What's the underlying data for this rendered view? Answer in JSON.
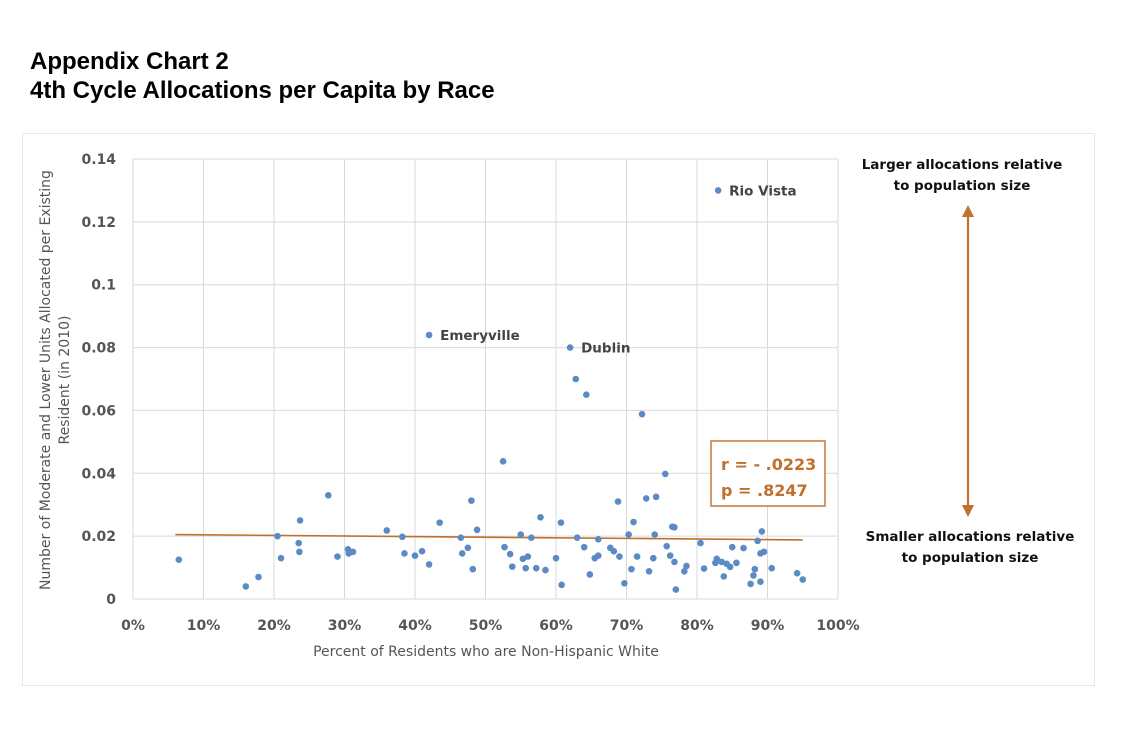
{
  "header": {
    "title_line1": "Appendix Chart 2",
    "title_line2": "4th Cycle Allocations per Capita by Race"
  },
  "annotations": {
    "top_note_line1": "Larger allocations relative",
    "top_note_line2": "to population size",
    "bottom_note_line1": "Smaller allocations relative",
    "bottom_note_line2": "to population size",
    "stats_r": "r = - .0223",
    "stats_p": "p = .8247"
  },
  "colors": {
    "points": "#5b8ac4",
    "trendline": "#c0702c",
    "arrow": "#c0702c",
    "stats_border": "#c0702c",
    "stats_text": "#c0702c",
    "grid": "#d9d9d9"
  },
  "chart_data": {
    "type": "scatter",
    "title": "",
    "xlabel": "Percent of Residents who are Non-Hispanic White",
    "ylabel_line1": "Number of Moderate and Lower Units Allocated per Existing",
    "ylabel_line2": "Resident (in 2010)",
    "xlim": [
      0,
      1
    ],
    "ylim": [
      0,
      0.14
    ],
    "x_ticks": [
      0,
      0.1,
      0.2,
      0.3,
      0.4,
      0.5,
      0.6,
      0.7,
      0.8,
      0.9,
      1.0
    ],
    "x_tick_labels": [
      "0%",
      "10%",
      "20%",
      "30%",
      "40%",
      "50%",
      "60%",
      "70%",
      "80%",
      "90%",
      "100%"
    ],
    "y_ticks": [
      0,
      0.02,
      0.04,
      0.06,
      0.08,
      0.1,
      0.12,
      0.14
    ],
    "y_tick_labels": [
      "0",
      "0.02",
      "0.04",
      "0.06",
      "0.08",
      "0.1",
      "0.12",
      "0.14"
    ],
    "grid": true,
    "trendline": {
      "x": [
        0.06,
        0.95
      ],
      "y": [
        0.0205,
        0.0188
      ]
    },
    "labeled_points": [
      {
        "label": "Rio Vista",
        "x": 0.83,
        "y": 0.13
      },
      {
        "label": "Emeryville",
        "x": 0.42,
        "y": 0.084
      },
      {
        "label": "Dublin",
        "x": 0.62,
        "y": 0.08
      }
    ],
    "points": [
      [
        0.065,
        0.0125
      ],
      [
        0.16,
        0.004
      ],
      [
        0.178,
        0.007
      ],
      [
        0.205,
        0.02
      ],
      [
        0.21,
        0.013
      ],
      [
        0.235,
        0.0178
      ],
      [
        0.236,
        0.015
      ],
      [
        0.237,
        0.025
      ],
      [
        0.277,
        0.033
      ],
      [
        0.29,
        0.0135
      ],
      [
        0.305,
        0.0158
      ],
      [
        0.306,
        0.0145
      ],
      [
        0.312,
        0.015
      ],
      [
        0.36,
        0.0218
      ],
      [
        0.382,
        0.0198
      ],
      [
        0.385,
        0.0145
      ],
      [
        0.4,
        0.0138
      ],
      [
        0.41,
        0.0152
      ],
      [
        0.42,
        0.011
      ],
      [
        0.435,
        0.0243
      ],
      [
        0.465,
        0.0195
      ],
      [
        0.467,
        0.0145
      ],
      [
        0.475,
        0.0163
      ],
      [
        0.48,
        0.0313
      ],
      [
        0.482,
        0.0095
      ],
      [
        0.488,
        0.022
      ],
      [
        0.525,
        0.0438
      ],
      [
        0.527,
        0.0165
      ],
      [
        0.535,
        0.0143
      ],
      [
        0.538,
        0.0103
      ],
      [
        0.55,
        0.0205
      ],
      [
        0.553,
        0.0128
      ],
      [
        0.557,
        0.0098
      ],
      [
        0.56,
        0.0135
      ],
      [
        0.565,
        0.0195
      ],
      [
        0.572,
        0.0098
      ],
      [
        0.578,
        0.026
      ],
      [
        0.585,
        0.0092
      ],
      [
        0.6,
        0.013
      ],
      [
        0.607,
        0.0243
      ],
      [
        0.608,
        0.0045
      ],
      [
        0.628,
        0.07
      ],
      [
        0.63,
        0.0195
      ],
      [
        0.643,
        0.065
      ],
      [
        0.64,
        0.0165
      ],
      [
        0.648,
        0.0078
      ],
      [
        0.655,
        0.013
      ],
      [
        0.66,
        0.019
      ],
      [
        0.66,
        0.0138
      ],
      [
        0.677,
        0.0163
      ],
      [
        0.682,
        0.0152
      ],
      [
        0.688,
        0.031
      ],
      [
        0.69,
        0.0135
      ],
      [
        0.697,
        0.005
      ],
      [
        0.703,
        0.0205
      ],
      [
        0.707,
        0.0095
      ],
      [
        0.71,
        0.0245
      ],
      [
        0.715,
        0.0135
      ],
      [
        0.722,
        0.0588
      ],
      [
        0.728,
        0.032
      ],
      [
        0.732,
        0.0088
      ],
      [
        0.738,
        0.013
      ],
      [
        0.742,
        0.0325
      ],
      [
        0.74,
        0.0205
      ],
      [
        0.755,
        0.0398
      ],
      [
        0.757,
        0.0168
      ],
      [
        0.762,
        0.0138
      ],
      [
        0.765,
        0.023
      ],
      [
        0.768,
        0.0228
      ],
      [
        0.768,
        0.0118
      ],
      [
        0.77,
        0.003
      ],
      [
        0.782,
        0.0088
      ],
      [
        0.785,
        0.0105
      ],
      [
        0.805,
        0.0178
      ],
      [
        0.81,
        0.0097
      ],
      [
        0.826,
        0.0115
      ],
      [
        0.828,
        0.0128
      ],
      [
        0.835,
        0.0118
      ],
      [
        0.838,
        0.0072
      ],
      [
        0.842,
        0.0112
      ],
      [
        0.847,
        0.0102
      ],
      [
        0.85,
        0.0165
      ],
      [
        0.856,
        0.0115
      ],
      [
        0.866,
        0.0162
      ],
      [
        0.876,
        0.0048
      ],
      [
        0.88,
        0.0075
      ],
      [
        0.882,
        0.0095
      ],
      [
        0.886,
        0.0185
      ],
      [
        0.89,
        0.0055
      ],
      [
        0.89,
        0.0145
      ],
      [
        0.892,
        0.0215
      ],
      [
        0.895,
        0.015
      ],
      [
        0.906,
        0.0098
      ],
      [
        0.942,
        0.0082
      ],
      [
        0.95,
        0.0062
      ]
    ]
  }
}
